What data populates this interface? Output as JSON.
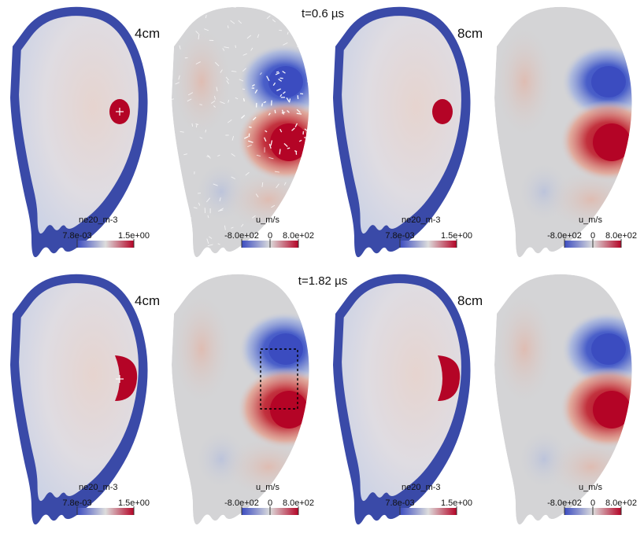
{
  "rows": [
    {
      "time_label": "t=0.6 µs",
      "panels": [
        {
          "kind": "density",
          "size_label": "4cm",
          "blob": "round",
          "marker": true,
          "colorbar": {
            "name": "ne20_m-3",
            "min": "7.8e-03",
            "max": "1.5e+00"
          }
        },
        {
          "kind": "velocity",
          "style": "arrows",
          "dashed_box": false,
          "colorbar": {
            "name": "u_m/s",
            "min": "-8.0e+02",
            "mid": "0",
            "max": "8.0e+02"
          }
        },
        {
          "kind": "density",
          "size_label": "8cm",
          "blob": "round",
          "marker": false,
          "colorbar": {
            "name": "ne20_m-3",
            "min": "7.8e-03",
            "max": "1.5e+00"
          }
        },
        {
          "kind": "velocity",
          "style": "smooth",
          "dashed_box": false,
          "colorbar": {
            "name": "u_m/s",
            "min": "-8.0e+02",
            "mid": "0",
            "max": "8.0e+02"
          }
        }
      ]
    },
    {
      "time_label": "t=1.82 µs",
      "panels": [
        {
          "kind": "density",
          "size_label": "4cm",
          "blob": "crescent",
          "marker": true,
          "colorbar": {
            "name": "ne20_m-3",
            "min": "7.8e-03",
            "max": "1.5e+00"
          }
        },
        {
          "kind": "velocity",
          "style": "smooth",
          "dashed_box": true,
          "colorbar": {
            "name": "u_m/s",
            "min": "-8.0e+02",
            "mid": "0",
            "max": "8.0e+02"
          }
        },
        {
          "kind": "density",
          "size_label": "8cm",
          "blob": "crescent",
          "marker": false,
          "colorbar": {
            "name": "ne20_m-3",
            "min": "7.8e-03",
            "max": "1.5e+00"
          }
        },
        {
          "kind": "velocity",
          "style": "smooth",
          "dashed_box": false,
          "colorbar": {
            "name": "u_m/s",
            "min": "-8.0e+02",
            "mid": "0",
            "max": "8.0e+02"
          }
        }
      ]
    }
  ],
  "colors": {
    "edge_dark": "#3a4aa8",
    "core": "#d8dde8",
    "core_warm": "#e3d3cf",
    "blob_red": "#b40426",
    "vel_background": "#d4d4d6",
    "vel_blue": "#3b4cc0",
    "vel_red": "#b40426",
    "cmap_low": "#3b4cc0",
    "cmap_mid": "#dddddd",
    "cmap_high": "#b40426"
  }
}
